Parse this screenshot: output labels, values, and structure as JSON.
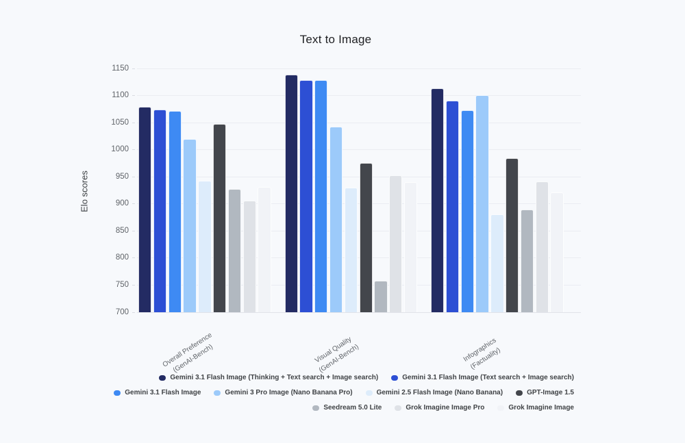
{
  "title": "Text to Image",
  "chart_data": {
    "type": "bar",
    "title": "Text to Image",
    "xlabel": "",
    "ylabel": "Elo scores",
    "ylim": [
      700,
      1150
    ],
    "ytick_step": 50,
    "grid": true,
    "legend_position": "bottom-right",
    "categories": [
      "Overall Preference (GenAI-Bench)",
      "Visual Quality (GenAI-Bench)",
      "Infographics (Factuality)"
    ],
    "category_lines": [
      [
        "Overall Preference",
        "(GenAI-Bench)"
      ],
      [
        "Visual Quality",
        "(GenAI-Bench)"
      ],
      [
        "Infographics",
        "(Factuality)"
      ]
    ],
    "series": [
      {
        "name": "Gemini 3.1 Flash Image (Thinking + Text search + Image search)",
        "color": "#232b63",
        "values": [
          1079,
          1139,
          1113
        ]
      },
      {
        "name": "Gemini 3.1 Flash Image (Text search + Image search)",
        "color": "#2d4fd4",
        "values": [
          1074,
          1129,
          1090
        ]
      },
      {
        "name": "Gemini 3.1 Flash Image",
        "color": "#3e8af3",
        "values": [
          1072,
          1128,
          1073
        ]
      },
      {
        "name": "Gemini 3 Pro Image (Nano Banana Pro)",
        "color": "#9ccafa",
        "values": [
          1020,
          1043,
          1101
        ]
      },
      {
        "name": "Gemini 2.5 Flash Image (Nano Banana)",
        "color": "#ddecfb",
        "values": [
          943,
          930,
          881
        ]
      },
      {
        "name": "GPT-Image 1.5",
        "color": "#43464c",
        "values": [
          1047,
          976,
          985
        ]
      },
      {
        "name": "Seedream 5.0 Lite",
        "color": "#b1b8c0",
        "values": [
          927,
          758,
          890
        ]
      },
      {
        "name": "Grok Imagine Image Pro",
        "color": "#dfe2e7",
        "values": [
          906,
          953,
          941
        ]
      },
      {
        "name": "Grok Imagine Image",
        "color": "#f1f3f7",
        "values": [
          931,
          940,
          921
        ]
      }
    ],
    "legend_rows": [
      [
        0,
        1
      ],
      [
        2,
        3,
        4,
        5
      ],
      [
        6,
        7,
        8
      ]
    ]
  }
}
